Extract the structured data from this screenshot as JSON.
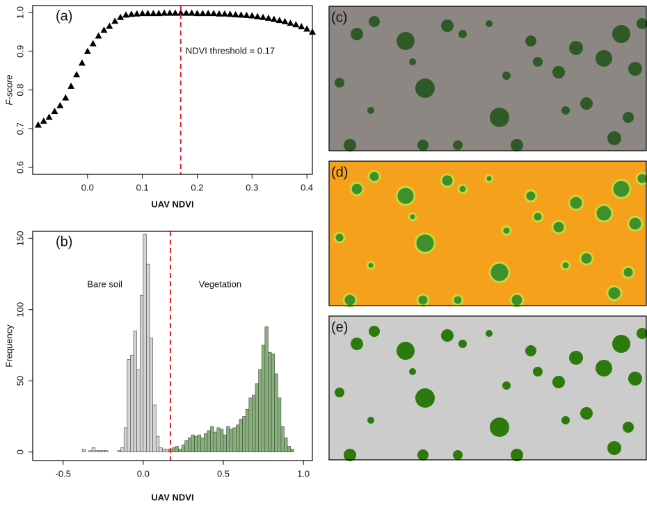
{
  "chart_data": [
    {
      "type": "scatter",
      "title": "(a)",
      "x_label": "UAV NDVI",
      "y_label": "F-score",
      "x": [
        -0.09,
        -0.08,
        -0.07,
        -0.06,
        -0.05,
        -0.04,
        -0.03,
        -0.02,
        -0.01,
        0.0,
        0.01,
        0.02,
        0.03,
        0.04,
        0.05,
        0.06,
        0.07,
        0.08,
        0.09,
        0.1,
        0.11,
        0.12,
        0.13,
        0.14,
        0.15,
        0.16,
        0.17,
        0.18,
        0.19,
        0.2,
        0.21,
        0.22,
        0.23,
        0.24,
        0.25,
        0.26,
        0.27,
        0.28,
        0.29,
        0.3,
        0.31,
        0.32,
        0.33,
        0.34,
        0.35,
        0.36,
        0.37,
        0.38,
        0.39,
        0.4,
        0.41
      ],
      "values": [
        0.71,
        0.72,
        0.73,
        0.745,
        0.76,
        0.78,
        0.81,
        0.84,
        0.87,
        0.9,
        0.92,
        0.94,
        0.955,
        0.965,
        0.978,
        0.988,
        0.994,
        0.996,
        0.997,
        0.998,
        0.998,
        0.998,
        0.998,
        0.999,
        0.999,
        0.999,
        0.999,
        0.999,
        0.999,
        0.998,
        0.998,
        0.998,
        0.998,
        0.997,
        0.997,
        0.996,
        0.995,
        0.994,
        0.993,
        0.992,
        0.99,
        0.988,
        0.986,
        0.983,
        0.98,
        0.977,
        0.973,
        0.969,
        0.964,
        0.958,
        0.95
      ],
      "color": "#000000",
      "xlim": [
        -0.1,
        0.41
      ],
      "ylim": [
        0.582,
        1.018
      ],
      "xticks": [
        {
          "value": 0,
          "label": "0.0"
        },
        0.1,
        0.2,
        0.3,
        0.4
      ],
      "yticks": [
        0.6,
        0.7,
        0.8,
        0.9,
        {
          "value": 1,
          "label": "1.0"
        }
      ],
      "threshold": 0.17,
      "threshold_color": "#e8202a",
      "annotation": "NDVI threshold = 0.17"
    },
    {
      "type": "histogram",
      "title": "(b)",
      "x_label": "UAV NDVI",
      "y_label": "Frequency",
      "series": [
        {
          "name": "Bare soil",
          "color": "#d3d3d3",
          "label_color": "#222222",
          "bins": [
            -0.38,
            -0.36,
            -0.34,
            -0.32,
            -0.3,
            -0.28,
            -0.26,
            -0.24,
            -0.22,
            -0.2,
            -0.18,
            -0.16,
            -0.14,
            -0.12,
            -0.1,
            -0.08,
            -0.06,
            -0.04,
            -0.02,
            0.0,
            0.02,
            0.04,
            0.06,
            0.08,
            0.1,
            0.12,
            0.14,
            0.16
          ],
          "values": [
            2,
            0,
            1,
            3,
            1,
            1,
            1,
            1,
            0,
            0,
            0,
            1,
            3,
            17,
            65,
            68,
            85,
            58,
            110,
            153,
            132,
            80,
            33,
            11,
            3,
            2,
            2
          ]
        },
        {
          "name": "Vegetation",
          "color": "#86b27a",
          "label_color": "#2e7d1f",
          "bins": [
            0.16,
            0.18,
            0.2,
            0.22,
            0.24,
            0.26,
            0.28,
            0.3,
            0.32,
            0.34,
            0.36,
            0.38,
            0.4,
            0.42,
            0.44,
            0.46,
            0.48,
            0.5,
            0.52,
            0.54,
            0.56,
            0.58,
            0.6,
            0.62,
            0.64,
            0.66,
            0.68,
            0.7,
            0.72,
            0.74,
            0.76,
            0.78,
            0.8,
            0.82,
            0.84,
            0.86,
            0.88,
            0.9,
            0.92,
            0.94
          ],
          "values": [
            2,
            3,
            4,
            2,
            5,
            8,
            10,
            12,
            11,
            12,
            10,
            13,
            15,
            18,
            14,
            17,
            16,
            12,
            18,
            16,
            17,
            19,
            23,
            25,
            30,
            38,
            40,
            48,
            58,
            75,
            88,
            70,
            69,
            55,
            38,
            18,
            10,
            4,
            2
          ]
        }
      ],
      "xlim": [
        -0.69,
        1.056
      ],
      "ylim": [
        -6,
        155
      ],
      "xticks": [
        -0.5,
        {
          "value": 0,
          "label": "0.0"
        },
        0.5,
        {
          "value": 1,
          "label": "1.0"
        }
      ],
      "yticks": [
        0,
        50,
        100,
        150
      ],
      "threshold": 0.17,
      "threshold_color": "#e8202a"
    }
  ],
  "image_panels": [
    "(c)",
    "(d)",
    "(e)"
  ]
}
